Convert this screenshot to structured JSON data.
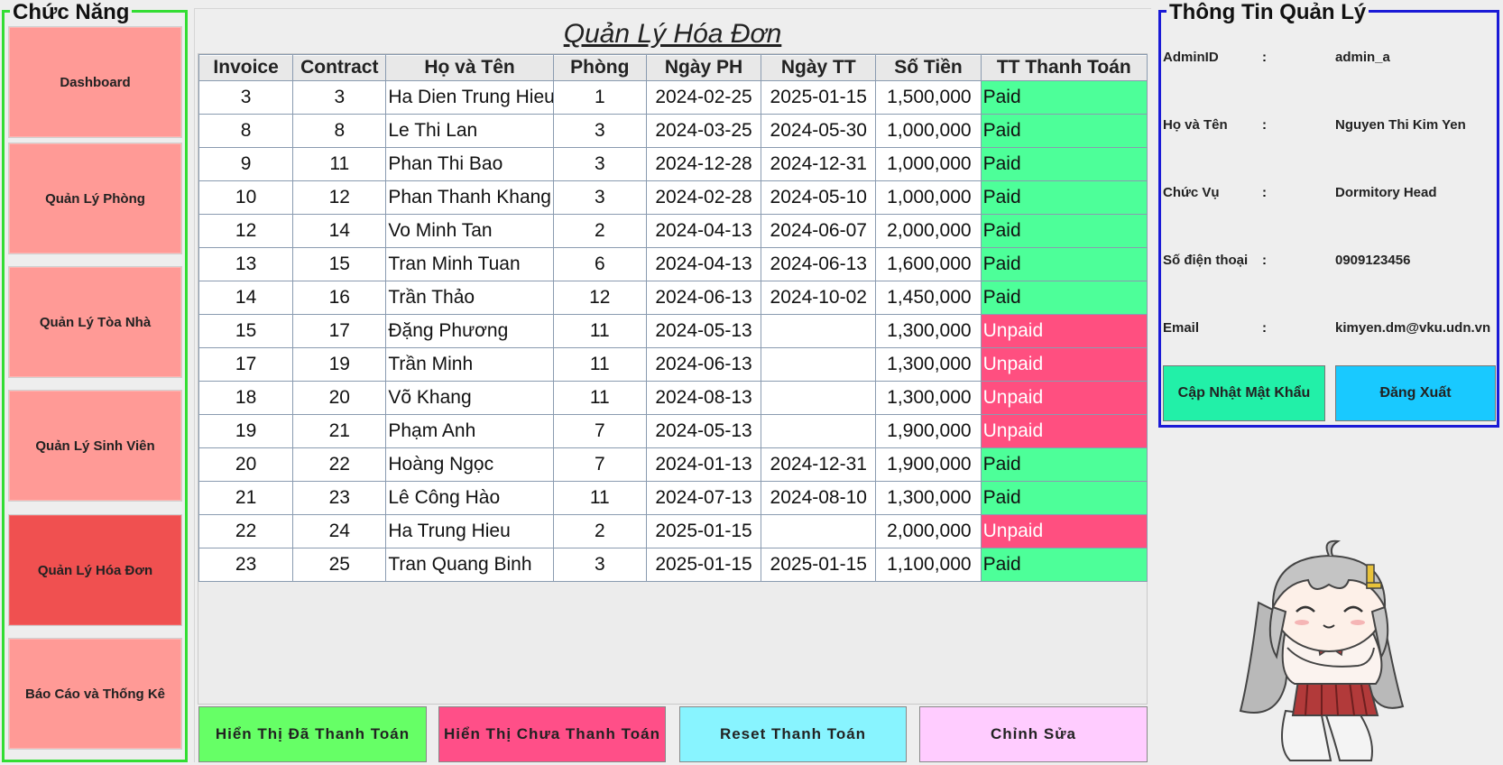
{
  "sidebar": {
    "title": "Chức Năng",
    "items": [
      {
        "label": "Dashboard",
        "active": false
      },
      {
        "label": "Quản Lý Phòng",
        "active": false
      },
      {
        "label": "Quản Lý Tòa Nhà",
        "active": false
      },
      {
        "label": "Quản Lý Sinh Viên",
        "active": false
      },
      {
        "label": "Quản Lý Hóa Đơn",
        "active": true
      },
      {
        "label": "Báo Cáo và Thống Kê",
        "active": false
      }
    ]
  },
  "main": {
    "title": "Quản Lý Hóa Đơn",
    "table": {
      "columns": [
        "Invoice",
        "Contract",
        "Họ và Tên",
        "Phòng",
        "Ngày PH",
        "Ngày TT",
        "Số Tiền",
        "TT Thanh Toán"
      ],
      "rows": [
        [
          "3",
          "3",
          "Ha Dien Trung Hieu",
          "1",
          "2024-02-25",
          "2025-01-15",
          "1,500,000",
          "Paid"
        ],
        [
          "8",
          "8",
          "Le Thi Lan",
          "3",
          "2024-03-25",
          "2024-05-30",
          "1,000,000",
          "Paid"
        ],
        [
          "9",
          "11",
          "Phan Thi Bao",
          "3",
          "2024-12-28",
          "2024-12-31",
          "1,000,000",
          "Paid"
        ],
        [
          "10",
          "12",
          "Phan Thanh Khang",
          "3",
          "2024-02-28",
          "2024-05-10",
          "1,000,000",
          "Paid"
        ],
        [
          "12",
          "14",
          "Vo Minh Tan",
          "2",
          "2024-04-13",
          "2024-06-07",
          "2,000,000",
          "Paid"
        ],
        [
          "13",
          "15",
          "Tran Minh Tuan",
          "6",
          "2024-04-13",
          "2024-06-13",
          "1,600,000",
          "Paid"
        ],
        [
          "14",
          "16",
          "Trần Thảo",
          "12",
          "2024-06-13",
          "2024-10-02",
          "1,450,000",
          "Paid"
        ],
        [
          "15",
          "17",
          "Đặng Phương",
          "11",
          "2024-05-13",
          "",
          "1,300,000",
          "Unpaid"
        ],
        [
          "17",
          "19",
          "Trần Minh",
          "11",
          "2024-06-13",
          "",
          "1,300,000",
          "Unpaid"
        ],
        [
          "18",
          "20",
          "Võ Khang",
          "11",
          "2024-08-13",
          "",
          "1,300,000",
          "Unpaid"
        ],
        [
          "19",
          "21",
          "Phạm Anh",
          "7",
          "2024-05-13",
          "",
          "1,900,000",
          "Unpaid"
        ],
        [
          "20",
          "22",
          "Hoàng Ngọc",
          "7",
          "2024-01-13",
          "2024-12-31",
          "1,900,000",
          "Paid"
        ],
        [
          "21",
          "23",
          "Lê Công Hào",
          "11",
          "2024-07-13",
          "2024-08-10",
          "1,300,000",
          "Paid"
        ],
        [
          "22",
          "24",
          "Ha Trung Hieu",
          "2",
          "2025-01-15",
          "",
          "2,000,000",
          "Unpaid"
        ],
        [
          "23",
          "25",
          "Tran Quang Binh",
          "3",
          "2025-01-15",
          "2025-01-15",
          "1,100,000",
          "Paid"
        ]
      ]
    },
    "actions": [
      {
        "label": "Hiển Thị Đã Thanh Toán",
        "color": "#66ff66"
      },
      {
        "label": "Hiển Thị Chưa Thanh Toán",
        "color": "#ff4f88"
      },
      {
        "label": "Reset Thanh Toán",
        "color": "#88f4ff"
      },
      {
        "label": "Chỉnh Sửa",
        "color": "#ffccff"
      }
    ]
  },
  "admin": {
    "title": "Thông Tin Quản Lý",
    "fields": [
      {
        "label": "AdminID",
        "value": "admin_a"
      },
      {
        "label": "Họ và Tên",
        "value": "Nguyen Thi Kim Yen"
      },
      {
        "label": "Chức Vụ",
        "value": "Dormitory Head"
      },
      {
        "label": "Số điện thoại",
        "value": "0909123456"
      },
      {
        "label": "Email",
        "value": "kimyen.dm@vku.udn.vn"
      }
    ],
    "colon": ":",
    "buttons": [
      {
        "label": "Cập Nhật Mật Khẩu",
        "color": "#22f0a8"
      },
      {
        "label": "Đăng Xuất",
        "color": "#19c9ff"
      }
    ]
  },
  "colors": {
    "paid": "#4dff99",
    "unpaid": "#ff4f80",
    "nav": "#ff9a96",
    "nav_active": "#f05050",
    "sidebar_border": "#33dd33",
    "admin_border": "#1a1ad6"
  },
  "mascot_icon": "chibi-girl-mascot"
}
